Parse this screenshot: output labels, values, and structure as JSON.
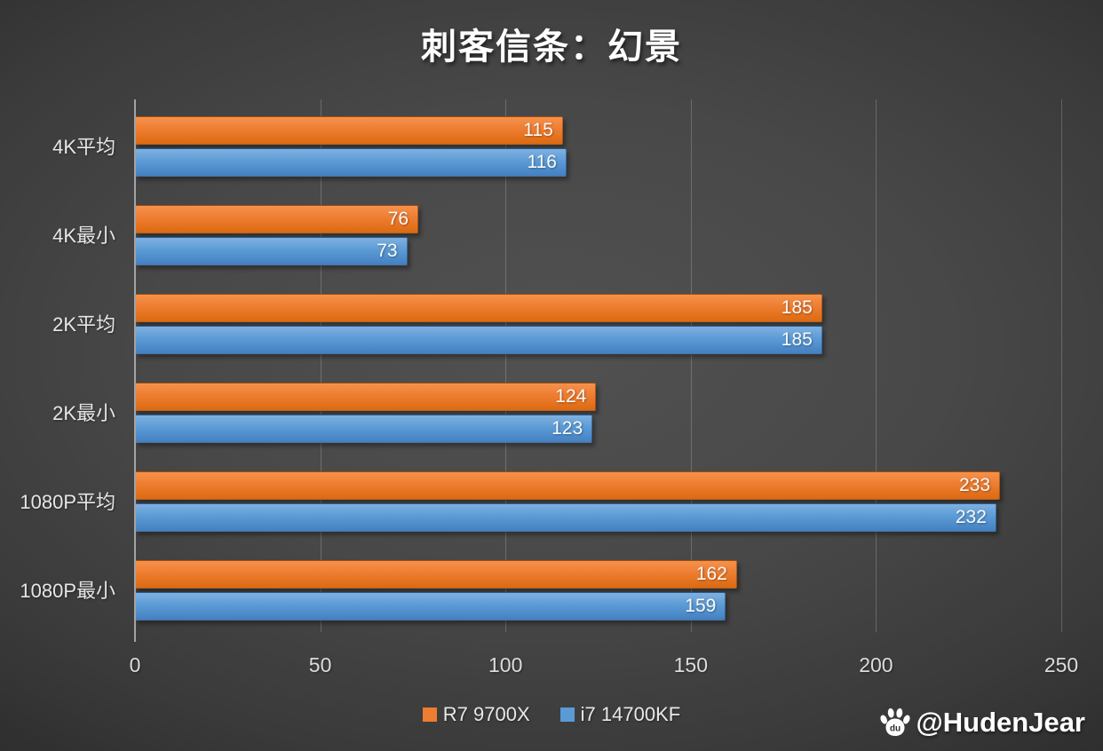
{
  "title": "刺客信条：幻景",
  "chart_data": {
    "type": "bar",
    "orientation": "horizontal",
    "title": "刺客信条：幻景",
    "categories": [
      "4K平均",
      "4K最小",
      "2K平均",
      "2K最小",
      "1080P平均",
      "1080P最小"
    ],
    "series": [
      {
        "name": "R7 9700X",
        "color": "#ED7D31",
        "values": [
          115,
          76,
          185,
          124,
          233,
          162
        ]
      },
      {
        "name": "i7 14700KF",
        "color": "#5B9BD5",
        "values": [
          116,
          73,
          185,
          123,
          232,
          159
        ]
      }
    ],
    "xlim": [
      0,
      250
    ],
    "x_ticks": [
      0,
      50,
      100,
      150,
      200,
      250
    ],
    "grid": true,
    "legend_position": "bottom",
    "data_labels": "inside-end"
  },
  "legend": {
    "items": [
      {
        "label": "R7 9700X",
        "color": "#ED7D31"
      },
      {
        "label": "i7 14700KF",
        "color": "#5B9BD5"
      }
    ]
  },
  "watermark": {
    "icon": "baidu-paw-icon",
    "handle": "@HudenJear"
  },
  "colors": {
    "background_center": "#515151",
    "background_edge": "#262626",
    "series_orange": "#ED7D31",
    "series_blue": "#5B9BD5",
    "gridline": "rgba(255,255,255,0.20)",
    "axis_line": "#A3A3A3",
    "title_text": "#FFFFFF",
    "tick_text": "#DCDCDC"
  }
}
